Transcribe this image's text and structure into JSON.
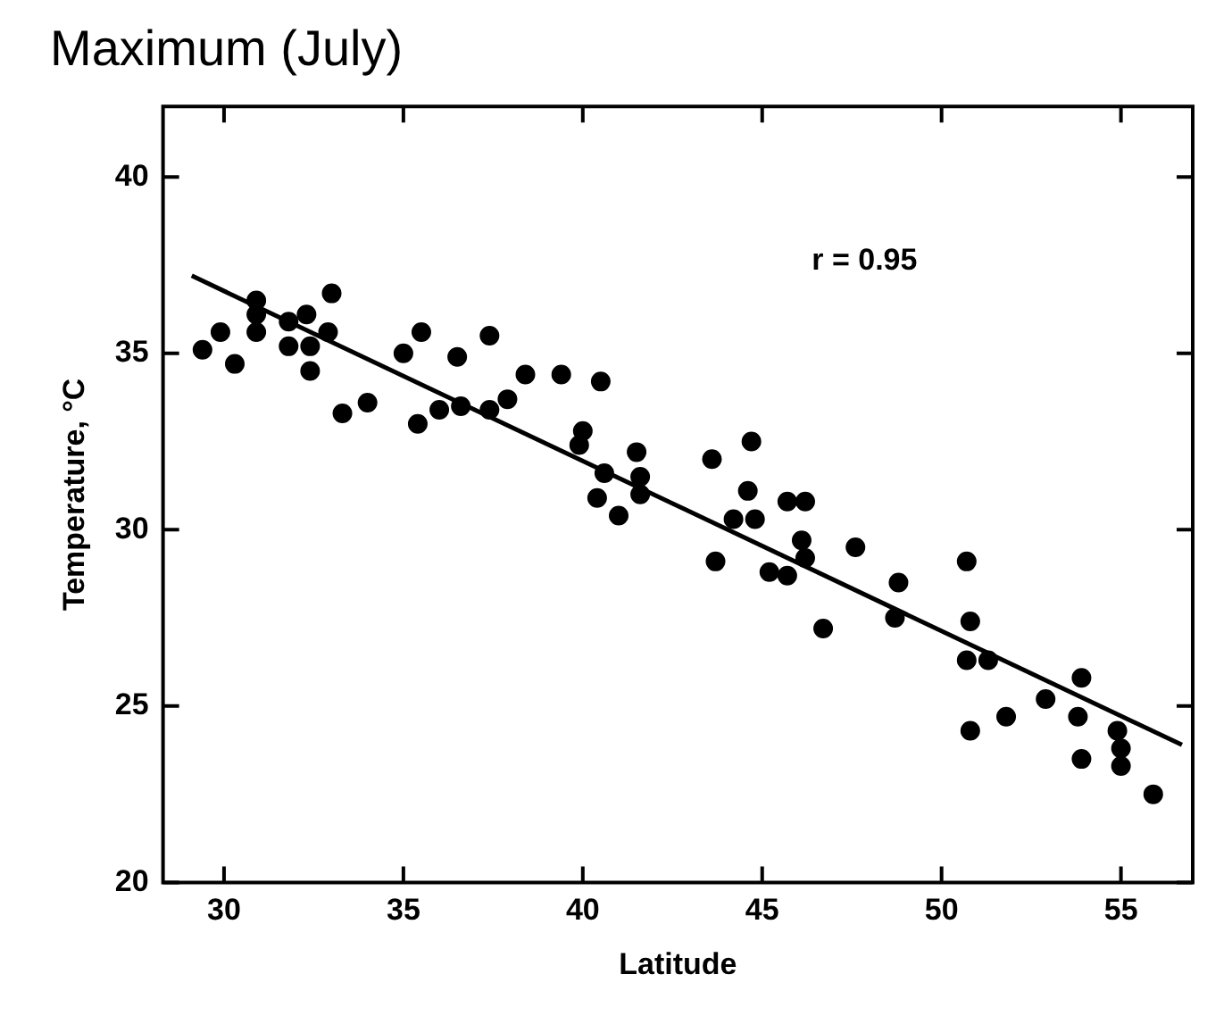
{
  "chart_data": {
    "type": "scatter",
    "title": "Maximum (July)",
    "xlabel": "Latitude",
    "ylabel": "Temperature, °C",
    "xlim": [
      28.3,
      57
    ],
    "ylim": [
      20,
      42
    ],
    "xticks": [
      30,
      35,
      40,
      45,
      50,
      55
    ],
    "yticks": [
      20,
      25,
      30,
      35,
      40
    ],
    "grid": false,
    "legend": false,
    "annotations": [
      "r = 0.95"
    ],
    "series": [
      {
        "type": "scatter",
        "marker": "circle",
        "color": "#000000",
        "x": [
          29.4,
          29.9,
          30.3,
          30.9,
          30.9,
          30.9,
          31.8,
          31.8,
          32.3,
          32.4,
          32.4,
          33.0,
          32.9,
          33.3,
          34.0,
          35.0,
          35.5,
          35.4,
          36.0,
          36.5,
          36.6,
          37.4,
          37.4,
          37.9,
          38.4,
          39.4,
          40.5,
          40.0,
          39.9,
          40.6,
          41.5,
          41.6,
          41.6,
          40.4,
          41.0,
          43.6,
          44.7,
          44.6,
          44.8,
          44.2,
          43.7,
          45.7,
          46.2,
          46.1,
          46.2,
          45.2,
          45.7,
          46.7,
          47.6,
          48.8,
          48.7,
          50.7,
          50.8,
          50.7,
          51.3,
          50.8,
          51.8,
          52.9,
          53.9,
          53.8,
          53.9,
          54.9,
          55.0,
          55.0,
          55.9
        ],
        "values": [
          35.1,
          35.6,
          34.7,
          36.5,
          36.1,
          35.6,
          35.9,
          35.2,
          36.1,
          35.2,
          34.5,
          36.7,
          35.6,
          33.3,
          33.6,
          35.0,
          35.6,
          33.0,
          33.4,
          34.9,
          33.5,
          35.5,
          33.4,
          33.7,
          34.4,
          34.4,
          34.2,
          32.8,
          32.4,
          31.6,
          32.2,
          31.5,
          31.0,
          30.9,
          30.4,
          32.0,
          32.5,
          31.1,
          30.3,
          30.3,
          29.1,
          30.8,
          30.8,
          29.7,
          29.2,
          28.8,
          28.7,
          27.2,
          29.5,
          28.5,
          27.5,
          29.1,
          27.4,
          26.3,
          26.3,
          24.3,
          24.7,
          25.2,
          25.8,
          24.7,
          23.5,
          24.3,
          23.8,
          23.3,
          22.5
        ]
      },
      {
        "type": "line",
        "color": "#000000",
        "x": [
          29.1,
          56.7
        ],
        "values": [
          37.2,
          23.9
        ]
      }
    ]
  }
}
